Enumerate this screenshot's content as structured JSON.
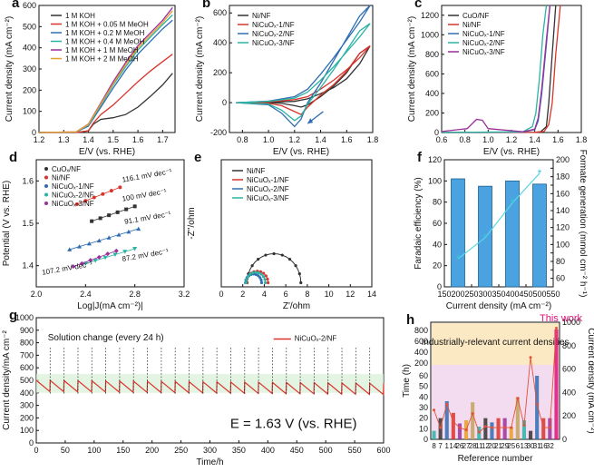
{
  "chart_data": [
    {
      "id": "a",
      "label": "a",
      "type": "line",
      "xlabel": "E/V (vs. RHE)",
      "ylabel": "Current density (mA cm⁻²)",
      "xlim": [
        1.2,
        1.75
      ],
      "ylim": [
        0,
        600
      ],
      "xticks": [
        "1.2",
        "1.3",
        "1.4",
        "1.5",
        "1.6",
        "1.7"
      ],
      "yticks": [
        "0",
        "100",
        "200",
        "300",
        "400",
        "500",
        "600"
      ],
      "series": [
        {
          "name": "1 M KOH",
          "color": "#333333",
          "x": [
            1.2,
            1.35,
            1.4,
            1.42,
            1.45,
            1.5,
            1.55,
            1.6,
            1.65,
            1.7,
            1.74
          ],
          "y": [
            0,
            0,
            8,
            40,
            62,
            70,
            85,
            120,
            170,
            225,
            280
          ]
        },
        {
          "name": "1 M KOH + 0.05 M MeOH",
          "color": "#d9342b",
          "x": [
            1.2,
            1.35,
            1.4,
            1.42,
            1.45,
            1.5,
            1.55,
            1.6,
            1.65,
            1.7,
            1.74
          ],
          "y": [
            0,
            0,
            8,
            45,
            85,
            130,
            185,
            240,
            290,
            335,
            370
          ]
        },
        {
          "name": "1 M KOH + 0.2 M MeOH",
          "color": "#2f6db2",
          "x": [
            1.2,
            1.35,
            1.4,
            1.45,
            1.5,
            1.55,
            1.6,
            1.65,
            1.7,
            1.74
          ],
          "y": [
            0,
            2,
            30,
            120,
            210,
            295,
            370,
            430,
            490,
            530
          ]
        },
        {
          "name": "1 M KOH + 0.4 M MeOH",
          "color": "#2bb3a3",
          "x": [
            1.2,
            1.35,
            1.4,
            1.45,
            1.5,
            1.55,
            1.6,
            1.65,
            1.7,
            1.74
          ],
          "y": [
            0,
            2,
            35,
            130,
            225,
            310,
            390,
            450,
            510,
            555
          ]
        },
        {
          "name": "1 M KOH + 1 M MeOH",
          "color": "#9b2f9b",
          "x": [
            1.2,
            1.35,
            1.4,
            1.45,
            1.5,
            1.55,
            1.6,
            1.65,
            1.7,
            1.74
          ],
          "y": [
            0,
            3,
            40,
            140,
            240,
            330,
            410,
            470,
            530,
            590
          ]
        },
        {
          "name": "1 M KOH + 2 M MeOH",
          "color": "#e8a02a",
          "x": [
            1.2,
            1.35,
            1.4,
            1.45,
            1.5,
            1.55,
            1.6,
            1.65,
            1.7,
            1.74
          ],
          "y": [
            0,
            3,
            38,
            135,
            230,
            320,
            400,
            460,
            520,
            575
          ]
        }
      ]
    },
    {
      "id": "b",
      "label": "b",
      "type": "line",
      "xlabel": "E/V (vs. RHE)",
      "ylabel": "Current density (mA cm⁻²)",
      "xlim": [
        0.7,
        1.8
      ],
      "ylim": [
        -200,
        650
      ],
      "xticks": [
        "0.8",
        "1.0",
        "1.2",
        "1.4",
        "1.6",
        "1.8"
      ],
      "yticks": [
        "-200",
        "0",
        "200",
        "400",
        "600"
      ],
      "series": [
        {
          "name": "Ni/NF",
          "color": "#333333",
          "x": [
            0.75,
            1.0,
            1.2,
            1.3,
            1.4,
            1.5,
            1.6,
            1.7,
            1.78,
            1.7,
            1.6,
            1.5,
            1.4,
            1.3,
            1.25,
            1.2,
            1.1,
            1.0,
            0.75
          ],
          "y": [
            0,
            2,
            8,
            25,
            60,
            100,
            160,
            260,
            380,
            330,
            200,
            110,
            40,
            -15,
            -30,
            -20,
            -5,
            0,
            0
          ]
        },
        {
          "name": "NiCuOₓ-1/NF",
          "color": "#d9342b",
          "x": [
            0.75,
            1.0,
            1.2,
            1.3,
            1.4,
            1.5,
            1.6,
            1.7,
            1.78,
            1.7,
            1.6,
            1.5,
            1.4,
            1.3,
            1.25,
            1.2,
            1.1,
            1.0,
            0.75
          ],
          "y": [
            0,
            5,
            20,
            40,
            90,
            150,
            220,
            300,
            380,
            330,
            210,
            120,
            50,
            -30,
            -80,
            -60,
            -20,
            -5,
            0
          ]
        },
        {
          "name": "NiCuOₓ-2/NF",
          "color": "#2f6db2",
          "x": [
            0.75,
            1.0,
            1.2,
            1.3,
            1.4,
            1.5,
            1.6,
            1.7,
            1.78,
            1.7,
            1.6,
            1.5,
            1.4,
            1.3,
            1.25,
            1.2,
            1.1,
            1.0,
            0.75
          ],
          "y": [
            0,
            10,
            40,
            90,
            190,
            300,
            420,
            540,
            650,
            580,
            430,
            280,
            130,
            0,
            -110,
            -160,
            -70,
            -15,
            0
          ]
        },
        {
          "name": "NiCuOₓ-3/NF",
          "color": "#2bb3a3",
          "x": [
            0.75,
            1.0,
            1.2,
            1.3,
            1.4,
            1.5,
            1.6,
            1.7,
            1.78,
            1.7,
            1.6,
            1.5,
            1.4,
            1.3,
            1.25,
            1.2,
            1.1,
            1.0,
            0.75
          ],
          "y": [
            0,
            8,
            30,
            70,
            150,
            240,
            340,
            440,
            530,
            480,
            350,
            220,
            100,
            -10,
            -90,
            -120,
            -50,
            -10,
            0
          ]
        }
      ]
    },
    {
      "id": "c",
      "label": "c",
      "type": "line",
      "xlabel": "E/V (vs. RHE)",
      "ylabel": "Current density (mA cm⁻²)",
      "xlim": [
        0.6,
        1.8
      ],
      "ylim": [
        0,
        1300
      ],
      "xticks": [
        "0.6",
        "0.8",
        "1.0",
        "1.2",
        "1.4",
        "1.6",
        "1.8"
      ],
      "yticks": [
        "0",
        "200",
        "400",
        "600",
        "800",
        "1000",
        "1200"
      ],
      "series": [
        {
          "name": "CuO/NF",
          "color": "#333333",
          "x": [
            0.6,
            1.4,
            1.45,
            1.5,
            1.52,
            1.55,
            1.58
          ],
          "y": [
            0,
            2,
            8,
            60,
            300,
            800,
            1300
          ]
        },
        {
          "name": "Ni/NF",
          "color": "#d9342b",
          "x": [
            0.6,
            1.4,
            1.48,
            1.52,
            1.55,
            1.58,
            1.62
          ],
          "y": [
            0,
            2,
            10,
            80,
            300,
            800,
            1300
          ]
        },
        {
          "name": "NiCuOₓ-1/NF",
          "color": "#2f6db2",
          "x": [
            0.6,
            1.3,
            1.4,
            1.43,
            1.46,
            1.5,
            1.53
          ],
          "y": [
            0,
            5,
            30,
            120,
            400,
            900,
            1300
          ]
        },
        {
          "name": "NiCuOₓ-2/NF",
          "color": "#2bb3a3",
          "x": [
            0.6,
            1.3,
            1.38,
            1.41,
            1.44,
            1.47,
            1.5
          ],
          "y": [
            0,
            8,
            60,
            200,
            550,
            1000,
            1300
          ]
        },
        {
          "name": "NiCuOₓ-3/NF",
          "color": "#9b2f9b",
          "x": [
            0.6,
            0.82,
            0.9,
            0.95,
            1.0,
            1.3,
            1.4,
            1.43,
            1.46,
            1.5,
            1.53
          ],
          "y": [
            10,
            40,
            135,
            125,
            40,
            8,
            35,
            150,
            450,
            950,
            1300
          ]
        }
      ]
    },
    {
      "id": "d",
      "label": "d",
      "type": "scatter",
      "xlabel": "Log|J(mA cm⁻²)|",
      "ylabel": "Potential (V vs. RHE)",
      "xlim": [
        2.0,
        3.2
      ],
      "ylim": [
        1.35,
        1.65
      ],
      "xticks": [
        "2.0",
        "2.4",
        "2.8",
        "3.2"
      ],
      "yticks": [
        "1.4",
        "1.5",
        "1.6"
      ],
      "series": [
        {
          "name": "CuOₓ/NF",
          "color": "#333333",
          "slope": "100 mV dec⁻¹",
          "x": [
            2.45,
            2.52,
            2.59,
            2.66,
            2.73,
            2.8
          ],
          "y": [
            1.505,
            1.512,
            1.519,
            1.526,
            1.533,
            1.54
          ]
        },
        {
          "name": "Ni/NF",
          "color": "#d9342b",
          "slope": "116.1 mV dec⁻¹",
          "x": [
            2.33,
            2.4,
            2.47,
            2.54,
            2.61,
            2.68
          ],
          "y": [
            1.545,
            1.553,
            1.561,
            1.569,
            1.577,
            1.585
          ]
        },
        {
          "name": "NiCuOₓ-1/NF",
          "color": "#2f6db2",
          "slope": "91.1 mV dec⁻¹",
          "x": [
            2.27,
            2.35,
            2.43,
            2.51,
            2.59,
            2.67,
            2.75,
            2.83
          ],
          "y": [
            1.438,
            1.445,
            1.452,
            1.459,
            1.466,
            1.473,
            1.48,
            1.487
          ]
        },
        {
          "name": "NiCuOₓ-2/NF",
          "color": "#2bb3a3",
          "slope": "87.2 mV dec⁻¹",
          "x": [
            2.4,
            2.48,
            2.56,
            2.64,
            2.72,
            2.8
          ],
          "y": [
            1.405,
            1.412,
            1.419,
            1.426,
            1.433,
            1.44
          ]
        },
        {
          "name": "NiCuOₓ-3/NF",
          "color": "#9b2f9b",
          "slope": "107.2 mV dec⁻¹",
          "x": [
            2.3,
            2.37,
            2.44,
            2.51,
            2.58,
            2.65
          ],
          "y": [
            1.398,
            1.405,
            1.413,
            1.42,
            1.428,
            1.435
          ]
        }
      ]
    },
    {
      "id": "e",
      "label": "e",
      "type": "line",
      "xlabel": "Z'/ohm",
      "ylabel": "-Z''/ohm",
      "xlim": [
        0,
        14
      ],
      "ylim": [
        -0.3,
        9
      ],
      "xticks": [
        "0",
        "2",
        "4",
        "6",
        "8",
        "10",
        "12",
        "14"
      ],
      "yticks": [],
      "series": [
        {
          "name": "Ni/NF",
          "color": "#333333",
          "center": 4.9,
          "radius": 2.5
        },
        {
          "name": "NiCuOₓ-1/NF",
          "color": "#d9342b",
          "center": 3.35,
          "radius": 1.0
        },
        {
          "name": "NiCuOₓ-2/NF",
          "color": "#2f6db2",
          "center": 3.0,
          "radius": 0.75
        },
        {
          "name": "NiCuOₓ-3/NF",
          "color": "#2bb3a3",
          "center": 3.2,
          "radius": 0.9
        }
      ]
    },
    {
      "id": "f",
      "label": "f",
      "type": "bar",
      "xlabel": "Current density (mA cm⁻²)",
      "ylabel": "Faradaic efficiency (%)",
      "y2label": "Formate generation (mmol cm⁻² h⁻¹)",
      "categories": [
        "200",
        "300",
        "400",
        "500"
      ],
      "xticks": [
        "150",
        "200",
        "250",
        "300",
        "350",
        "400",
        "450",
        "500",
        "550"
      ],
      "xlim": [
        150,
        550
      ],
      "ylim": [
        0,
        120
      ],
      "y2lim": [
        50,
        200
      ],
      "y2ticks": [
        "60",
        "70",
        "80",
        "90",
        "100",
        "110",
        "120",
        "130",
        "140",
        "150",
        "160",
        "170",
        "180",
        "190",
        "200"
      ],
      "values": [
        102,
        95,
        100,
        97
      ],
      "line": {
        "name": "Formate generation",
        "x": [
          200,
          300,
          400,
          500
        ],
        "values": [
          83,
          108,
          149,
          184
        ]
      }
    },
    {
      "id": "g",
      "label": "g",
      "type": "line",
      "xlabel": "Time/h",
      "ylabel": "Current density/mA cm⁻²",
      "xlim": [
        0,
        600
      ],
      "ylim": [
        0,
        1000
      ],
      "xticks": [
        "0",
        "50",
        "100",
        "150",
        "200",
        "250",
        "300",
        "350",
        "400",
        "450",
        "500",
        "550",
        "600"
      ],
      "yticks": [
        "0",
        "100",
        "200",
        "300",
        "400",
        "500",
        "600",
        "700",
        "800",
        "900",
        "1000"
      ],
      "series": [
        {
          "name": "NiCuOₓ-2/NF",
          "color": "#d9342b",
          "cycle_h": 24,
          "start": 500,
          "end": 420
        }
      ],
      "annotation": "Solution change (every 24 h)",
      "condition": "E = 1.63 V (vs. RHE)"
    },
    {
      "id": "h",
      "label": "h",
      "type": "bar",
      "xlabel": "Reference number",
      "ylabel": "Time (h)",
      "y2label": "Current density (mA cm⁻²)",
      "categories": [
        "8",
        "7",
        "1",
        "14",
        "26",
        "27",
        "28",
        "11",
        "12",
        "20",
        "21",
        "29",
        "25",
        "6",
        "13",
        "30",
        "31",
        "16",
        "32",
        "This work"
      ],
      "values": [
        8,
        20,
        36,
        25,
        15,
        18,
        35,
        12,
        20,
        16,
        20,
        20,
        12,
        40,
        18,
        8,
        60,
        20,
        20,
        600
      ],
      "line_values": [
        250,
        100,
        300,
        150,
        100,
        80,
        220,
        60,
        110,
        100,
        100,
        100,
        100,
        350,
        120,
        700,
        300,
        100,
        100,
        950
      ],
      "yticks": [
        "0",
        "10",
        "20",
        "30",
        "40",
        "50",
        "60",
        "200",
        "400",
        "600",
        "800"
      ],
      "y2ticks": [
        "0",
        "200",
        "400",
        "600",
        "800",
        "1000"
      ],
      "region_label": "Industrially-relevant current densities",
      "highlight": "This work"
    }
  ]
}
